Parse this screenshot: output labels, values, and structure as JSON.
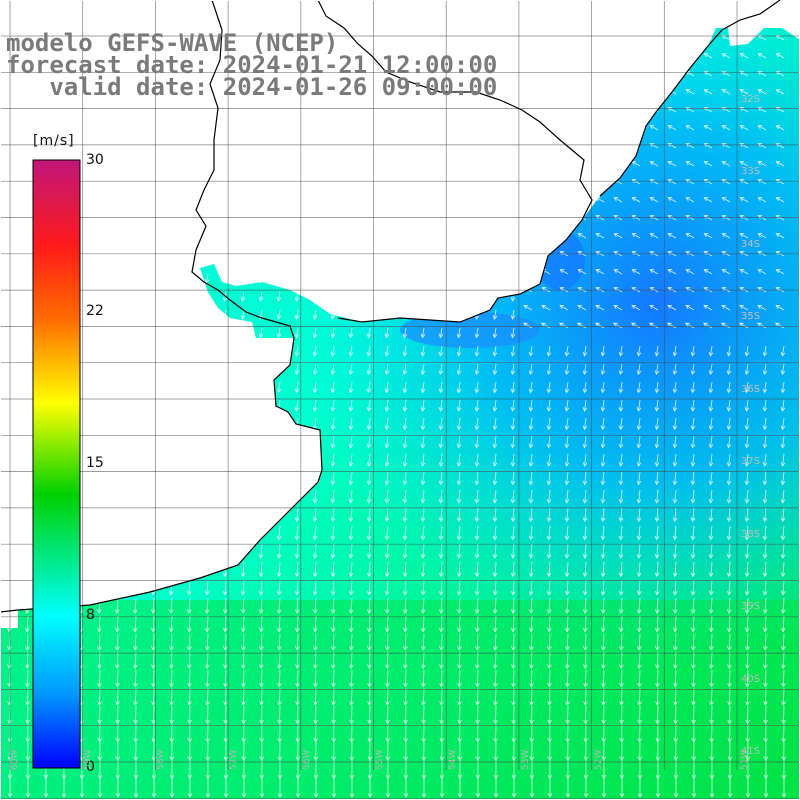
{
  "title": {
    "line1": "modelo GEFS-WAVE (NCEP)",
    "line2": "forecast date: 2024-01-21 12:00:00",
    "line3": "   valid date: 2024-01-26 09:00:00"
  },
  "colorbar": {
    "units": "[m/s]",
    "ticks": [
      "30",
      "22",
      "15",
      "8",
      "0"
    ],
    "stops": [
      "#c0167a",
      "#ff0000",
      "#ff7a00",
      "#ffff00",
      "#00d000",
      "#00ffff",
      "#008cff",
      "#0000ff"
    ]
  },
  "map": {
    "lat_labels": [
      "32S",
      "33S",
      "34S",
      "35S",
      "36S",
      "37S",
      "38S",
      "39S",
      "40S",
      "41S"
    ],
    "lon_labels": [
      "60W",
      "59W",
      "58W",
      "57W",
      "56W",
      "55W",
      "54W",
      "53W",
      "52W",
      "51W"
    ],
    "land_color": "#ffffff",
    "coast_color": "#000000",
    "arrow_color": "#ffffff"
  }
}
